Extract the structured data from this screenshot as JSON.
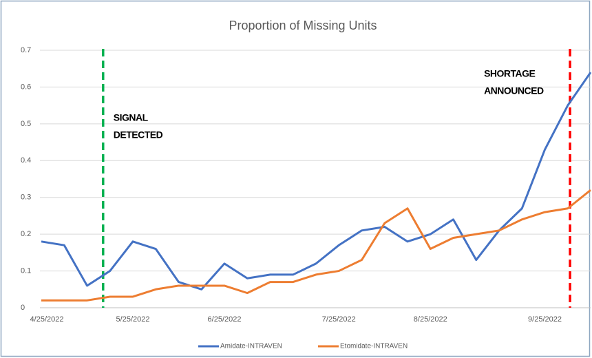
{
  "chart_data": {
    "type": "line",
    "title": "Proportion of Missing Units",
    "categories": [
      "4/25/2022",
      null,
      null,
      null,
      "5/25/2022",
      null,
      null,
      null,
      "6/25/2022",
      null,
      null,
      null,
      null,
      "7/25/2022",
      null,
      null,
      null,
      "8/25/2022",
      null,
      null,
      null,
      null,
      "9/25/2022",
      null,
      null
    ],
    "series": [
      {
        "name": "Amidate-INTRAVEN",
        "color": "#4472c4",
        "values": [
          0.18,
          0.17,
          0.06,
          0.1,
          0.18,
          0.16,
          0.07,
          0.05,
          0.12,
          0.08,
          0.09,
          0.09,
          0.12,
          0.17,
          0.21,
          0.22,
          0.18,
          0.2,
          0.24,
          0.13,
          0.21,
          0.27,
          0.43,
          0.55,
          0.64
        ]
      },
      {
        "name": "Etomidate-INTRAVEN",
        "color": "#ed7d31",
        "values": [
          0.02,
          0.02,
          0.02,
          0.03,
          0.03,
          0.05,
          0.06,
          0.06,
          0.06,
          0.04,
          0.07,
          0.07,
          0.09,
          0.1,
          0.13,
          0.23,
          0.27,
          0.16,
          0.19,
          0.2,
          0.21,
          0.24,
          0.26,
          0.27,
          0.32
        ]
      }
    ],
    "ylim": [
      0,
      0.7
    ],
    "yticks": [
      0,
      0.1,
      0.2,
      0.3,
      0.4,
      0.5,
      0.6,
      0.7
    ],
    "grid": true,
    "legend": "bottom",
    "annotations": [
      {
        "lines": [
          "SIGNAL",
          "DETECTED"
        ],
        "color": "#00b050"
      },
      {
        "lines": [
          "SHORTAGE",
          "ANNOUNCED"
        ],
        "color": "#ff0000"
      }
    ]
  }
}
